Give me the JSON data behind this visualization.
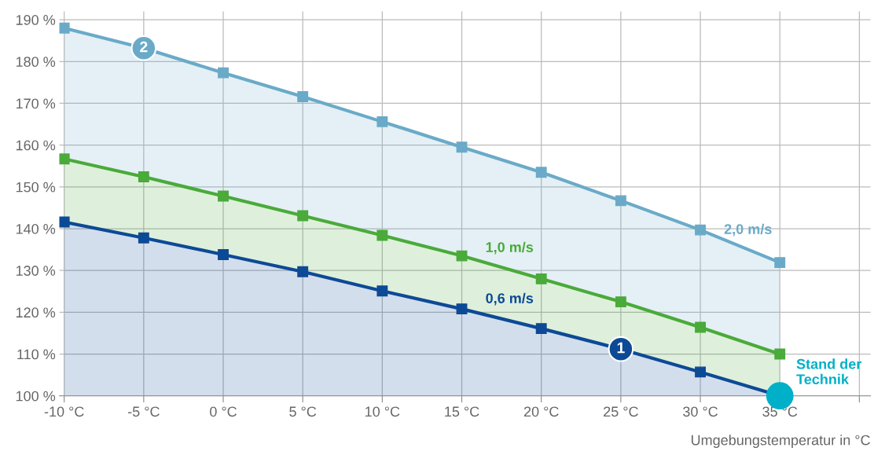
{
  "chart_data": {
    "type": "area",
    "xlabel": "Umgebungstemperatur in °C",
    "x": [
      -10,
      -5,
      0,
      5,
      10,
      15,
      20,
      25,
      30,
      35
    ],
    "series": [
      {
        "name": "0,6 m/s",
        "color": "#0d4a96",
        "values": [
          141.6,
          137.8,
          133.8,
          129.7,
          125.1,
          120.8,
          116.1,
          111.2,
          105.7,
          100
        ]
      },
      {
        "name": "1,0 m/s",
        "color": "#4aaa3a",
        "values": [
          156.7,
          152.4,
          147.8,
          143.1,
          138.4,
          133.5,
          128,
          122.5,
          116.4,
          110
        ]
      },
      {
        "name": "2,0 m/s",
        "color": "#6aaac8",
        "values": [
          188,
          183.2,
          177.3,
          171.6,
          165.6,
          159.5,
          153.5,
          146.7,
          139.7,
          131.9
        ]
      }
    ],
    "xlim": [
      -10.3,
      40.7
    ],
    "ylim": [
      100,
      192
    ],
    "xticks": [
      {
        "value": -10,
        "label": "-10 °C"
      },
      {
        "value": -5,
        "label": "-5 °C"
      },
      {
        "value": 0,
        "label": "0 °C"
      },
      {
        "value": 5,
        "label": "5 °C"
      },
      {
        "value": 10,
        "label": "10 °C"
      },
      {
        "value": 15,
        "label": "15 °C"
      },
      {
        "value": 20,
        "label": "20 °C"
      },
      {
        "value": 25,
        "label": "25 °C"
      },
      {
        "value": 30,
        "label": "30 °C"
      },
      {
        "value": 35,
        "label": "35 °C"
      },
      {
        "value": 40,
        "label": null
      }
    ],
    "yticks": [
      {
        "value": 100,
        "label": "100 %"
      },
      {
        "value": 110,
        "label": "110 %"
      },
      {
        "value": 120,
        "label": "120 %"
      },
      {
        "value": 130,
        "label": "130 %"
      },
      {
        "value": 140,
        "label": "140 %"
      },
      {
        "value": 150,
        "label": "150 %"
      },
      {
        "value": 160,
        "label": "160 %"
      },
      {
        "value": 170,
        "label": "170 %"
      },
      {
        "value": 180,
        "label": "180 %"
      },
      {
        "value": 190,
        "label": "190 %"
      }
    ],
    "annotations": [
      {
        "text": "1",
        "x": 25,
        "y": 111.2
      },
      {
        "text": "2",
        "x": -5,
        "y": 183.2
      },
      {
        "text": "Stand der Technik",
        "x": 35,
        "y": 100
      }
    ],
    "grid": true,
    "legend": false,
    "marker": "square",
    "line_style": "solid"
  }
}
